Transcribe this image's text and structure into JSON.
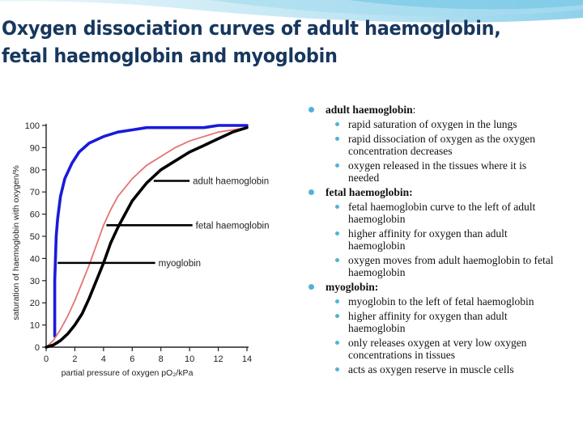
{
  "title": "Oxygen dissociation curves of adult haemoglobin, fetal haemoglobin and myoglobin",
  "colors": {
    "title": "#17375e",
    "bullet": "#4fb3d9",
    "myoglobin_curve": "#1a1adb",
    "adult_curve": "#000000",
    "fetal_curve": "#e57373"
  },
  "chart_data": {
    "type": "line",
    "xlabel": "partial pressure of oxygen pO₂/kPa",
    "ylabel": "saturation of haemoglobin with oxygen/%",
    "xlim": [
      0,
      14
    ],
    "ylim": [
      0,
      100
    ],
    "x_ticks": [
      "0",
      "2",
      "4",
      "6",
      "8",
      "10",
      "12",
      "14"
    ],
    "y_ticks": [
      "0",
      "10",
      "20",
      "30",
      "40",
      "50",
      "60",
      "70",
      "80",
      "90",
      "100"
    ],
    "grid": false,
    "legend": "inline labels",
    "series": [
      {
        "name": "myoglobin",
        "x": [
          0.6,
          0.6,
          0.7,
          0.8,
          1.0,
          1.3,
          1.8,
          2.3,
          3.0,
          4.0,
          5.0,
          6.0,
          7.0,
          8.0,
          9.0,
          10.0,
          11.0,
          12.0,
          13.0,
          14.0
        ],
        "y": [
          5,
          30,
          50,
          58,
          68,
          76,
          83,
          88,
          92,
          95,
          97,
          98,
          99,
          99,
          99,
          99,
          99,
          100,
          100,
          100
        ]
      },
      {
        "name": "fetal haemoglobin",
        "x": [
          0,
          0.5,
          1.0,
          1.5,
          2.0,
          2.5,
          3.0,
          3.5,
          4.0,
          4.5,
          5.0,
          6.0,
          7.0,
          8.0,
          9.0,
          10.0,
          11.0,
          12.0,
          13.0,
          14.0
        ],
        "y": [
          0,
          3,
          8,
          14,
          21,
          29,
          37,
          46,
          55,
          62,
          68,
          76,
          82,
          86,
          90,
          93,
          95,
          97,
          98,
          99
        ]
      },
      {
        "name": "adult haemoglobin",
        "x": [
          0,
          0.5,
          1.0,
          1.5,
          2.0,
          2.5,
          3.0,
          3.5,
          4.0,
          4.5,
          5.0,
          5.5,
          6.0,
          6.5,
          7.0,
          8.0,
          9.0,
          10.0,
          11.0,
          12.0,
          13.0,
          14.0
        ],
        "y": [
          0,
          1,
          3,
          6,
          10,
          15,
          22,
          30,
          38,
          47,
          54,
          60,
          66,
          70,
          74,
          80,
          84,
          88,
          91,
          94,
          97,
          99
        ]
      }
    ],
    "annotations": [
      {
        "label": "adult haemoglobin",
        "y": 75,
        "x_from": 7.5,
        "x_to": 10.0
      },
      {
        "label": "fetal haemoglobin",
        "y": 55,
        "x_from": 4.2,
        "x_to": 10.2
      },
      {
        "label": "myoglobin",
        "y": 38,
        "x_from": 0.8,
        "x_to": 7.6
      }
    ]
  },
  "notes": {
    "adult": {
      "heading": "adult haemoglobin",
      "colon": ":",
      "points": [
        "rapid saturation of oxygen in the lungs",
        "rapid dissociation of oxygen as the oxygen concentration decreases",
        "oxygen released in the tissues where it is needed"
      ]
    },
    "fetal": {
      "heading": "fetal haemoglobin:",
      "points": [
        "fetal haemoglobin curve to the left of adult haemoglobin",
        "higher affinity for oxygen than adult haemoglobin",
        "oxygen moves from adult haemoglobin to fetal haemoglobin"
      ]
    },
    "myo": {
      "heading": "myoglobin:",
      "points": [
        "myoglobin to the left of fetal haemoglobin",
        "higher affinity for oxygen than adult haemoglobin",
        "only releases oxygen at very low oxygen concentrations in tissues",
        "acts as oxygen reserve in muscle cells"
      ]
    }
  }
}
